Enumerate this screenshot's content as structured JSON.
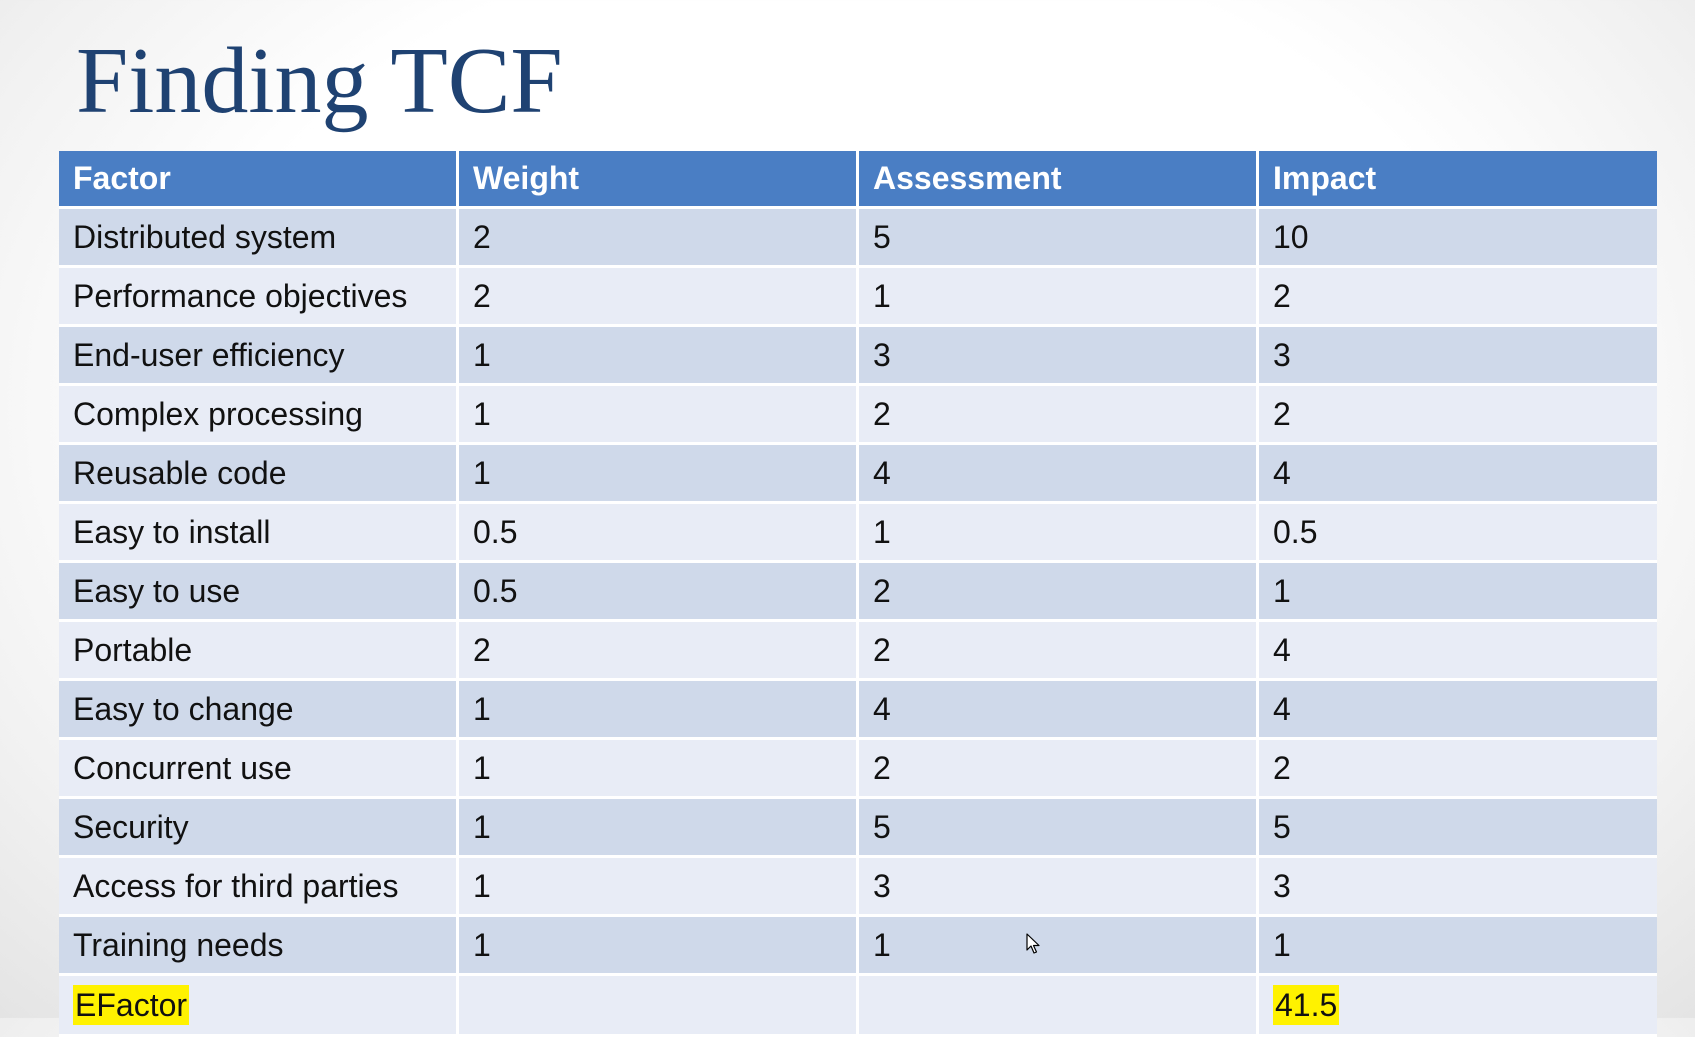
{
  "slide": {
    "title": "Finding TCF"
  },
  "table": {
    "headers": [
      "Factor",
      "Weight",
      "Assessment",
      "Impact"
    ],
    "rows": [
      {
        "factor": "Distributed system",
        "weight": "2",
        "assessment": "5",
        "impact": "10"
      },
      {
        "factor": "Performance objectives",
        "weight": "2",
        "assessment": "1",
        "impact": "2"
      },
      {
        "factor": "End-user efficiency",
        "weight": "1",
        "assessment": "3",
        "impact": "3"
      },
      {
        "factor": "Complex processing",
        "weight": "1",
        "assessment": "2",
        "impact": "2"
      },
      {
        "factor": "Reusable code",
        "weight": "1",
        "assessment": "4",
        "impact": "4"
      },
      {
        "factor": "Easy to install",
        "weight": "0.5",
        "assessment": "1",
        "impact": "0.5"
      },
      {
        "factor": "Easy to use",
        "weight": "0.5",
        "assessment": "2",
        "impact": "1"
      },
      {
        "factor": "Portable",
        "weight": "2",
        "assessment": "2",
        "impact": "4"
      },
      {
        "factor": "Easy to change",
        "weight": "1",
        "assessment": "4",
        "impact": "4"
      },
      {
        "factor": "Concurrent use",
        "weight": "1",
        "assessment": "2",
        "impact": "2"
      },
      {
        "factor": "Security",
        "weight": "1",
        "assessment": "5",
        "impact": "5"
      },
      {
        "factor": "Access for third parties",
        "weight": "1",
        "assessment": "3",
        "impact": "3"
      },
      {
        "factor": "Training needs",
        "weight": "1",
        "assessment": "1",
        "impact": "1"
      }
    ],
    "total": {
      "label": "EFactor",
      "weight": "",
      "assessment": "",
      "impact": "41.5"
    }
  },
  "colors": {
    "title": "#1f4272",
    "header_bg": "#4a7ec4",
    "row_odd_bg": "#cfd9ea",
    "row_even_bg": "#e8ecf6",
    "highlight": "#fff200"
  },
  "icons": {
    "cursor": "mouse-pointer-icon"
  }
}
